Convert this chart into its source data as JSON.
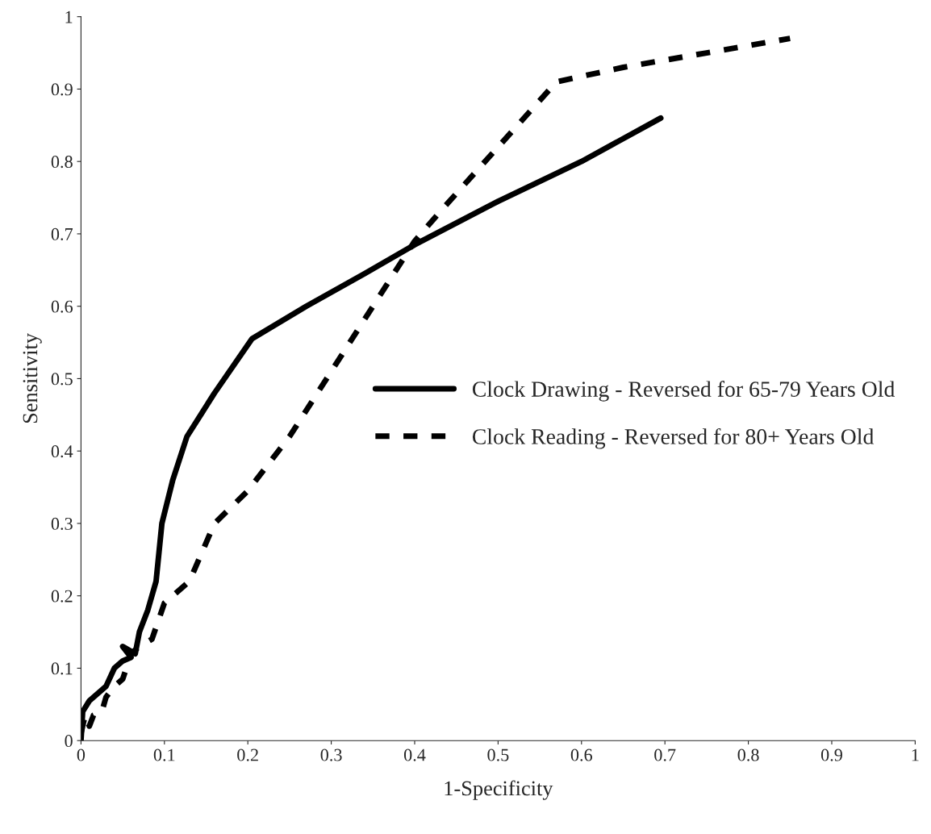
{
  "chart_data": {
    "type": "line",
    "xlabel": "1-Specificity",
    "ylabel": "Sensitivity",
    "xlim": [
      0,
      1
    ],
    "ylim": [
      0,
      1
    ],
    "xticks": [
      0,
      0.1,
      0.2,
      0.3,
      0.4,
      0.5,
      0.6,
      0.7,
      0.8,
      0.9,
      1
    ],
    "yticks": [
      0,
      0.1,
      0.2,
      0.3,
      0.4,
      0.5,
      0.6,
      0.7,
      0.8,
      0.9,
      1
    ],
    "grid": false,
    "legend": "center right",
    "marker": "none",
    "series": [
      {
        "name": "Clock Drawing - Reversed for 65-79 Years Old",
        "color": "#000000",
        "line_style": "solid",
        "x": [
          0,
          0.002,
          0.01,
          0.02,
          0.03,
          0.04,
          0.05,
          0.06,
          0.05,
          0.065,
          0.07,
          0.08,
          0.09,
          0.097,
          0.11,
          0.127,
          0.16,
          0.205,
          0.27,
          0.34,
          0.4,
          0.5,
          0.6,
          0.695
        ],
        "values": [
          0,
          0.04,
          0.055,
          0.065,
          0.075,
          0.1,
          0.11,
          0.115,
          0.13,
          0.12,
          0.15,
          0.18,
          0.22,
          0.3,
          0.36,
          0.42,
          0.48,
          0.555,
          0.6,
          0.645,
          0.685,
          0.745,
          0.8,
          0.86
        ]
      },
      {
        "name": "Clock Reading - Reversed for 80+ Years Old",
        "color": "#000000",
        "line_style": "dashed",
        "x": [
          0,
          0.005,
          0.01,
          0.015,
          0.025,
          0.03,
          0.04,
          0.05,
          0.06,
          0.07,
          0.085,
          0.1,
          0.13,
          0.16,
          0.2,
          0.25,
          0.3,
          0.35,
          0.4,
          0.43,
          0.5,
          0.57,
          0.65,
          0.75,
          0.85
        ],
        "values": [
          0.01,
          0.035,
          0.02,
          0.035,
          0.04,
          0.06,
          0.075,
          0.085,
          0.12,
          0.13,
          0.14,
          0.19,
          0.22,
          0.3,
          0.345,
          0.42,
          0.51,
          0.6,
          0.69,
          0.73,
          0.82,
          0.91,
          0.93,
          0.95,
          0.97
        ]
      }
    ]
  }
}
